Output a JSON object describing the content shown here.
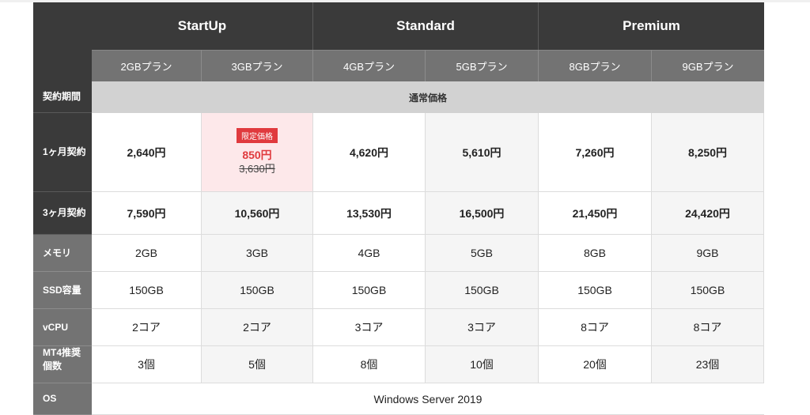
{
  "tiers": [
    "StartUp",
    "Standard",
    "Premium"
  ],
  "plans": [
    "2GBプラン",
    "3GBプラン",
    "4GBプラン",
    "5GBプラン",
    "8GBプラン",
    "9GBプラン"
  ],
  "contract_label": "契約期間",
  "period_label": "通常価格",
  "rows": {
    "one_month": {
      "label": "1ヶ月契約",
      "values": [
        "2,640円",
        "",
        "4,620円",
        "5,610円",
        "7,260円",
        "8,250円"
      ]
    },
    "three_month": {
      "label": "3ヶ月契約",
      "values": [
        "7,590円",
        "10,560円",
        "13,530円",
        "16,500円",
        "21,450円",
        "24,420円"
      ]
    },
    "memory": {
      "label": "メモリ",
      "values": [
        "2GB",
        "3GB",
        "4GB",
        "5GB",
        "8GB",
        "9GB"
      ]
    },
    "ssd": {
      "label": "SSD容量",
      "values": [
        "150GB",
        "150GB",
        "150GB",
        "150GB",
        "150GB",
        "150GB"
      ]
    },
    "vcpu": {
      "label": "vCPU",
      "values": [
        "2コア",
        "2コア",
        "3コア",
        "3コア",
        "8コア",
        "8コア"
      ]
    },
    "mt4": {
      "label_line1": "MT4推奨",
      "label_line2": "個数",
      "values": [
        "3個",
        "5個",
        "8個",
        "10個",
        "20個",
        "23個"
      ]
    },
    "os": {
      "label": "OS",
      "value": "Windows Server 2019"
    }
  },
  "promo": {
    "badge": "限定価格",
    "sale_price": "850円",
    "original_price": "3,630円"
  },
  "colors": {
    "header_dark": "#3a3a3a",
    "header_gray": "#737373",
    "accent_red": "#e03a3e",
    "promo_bg": "#fde8ea"
  }
}
